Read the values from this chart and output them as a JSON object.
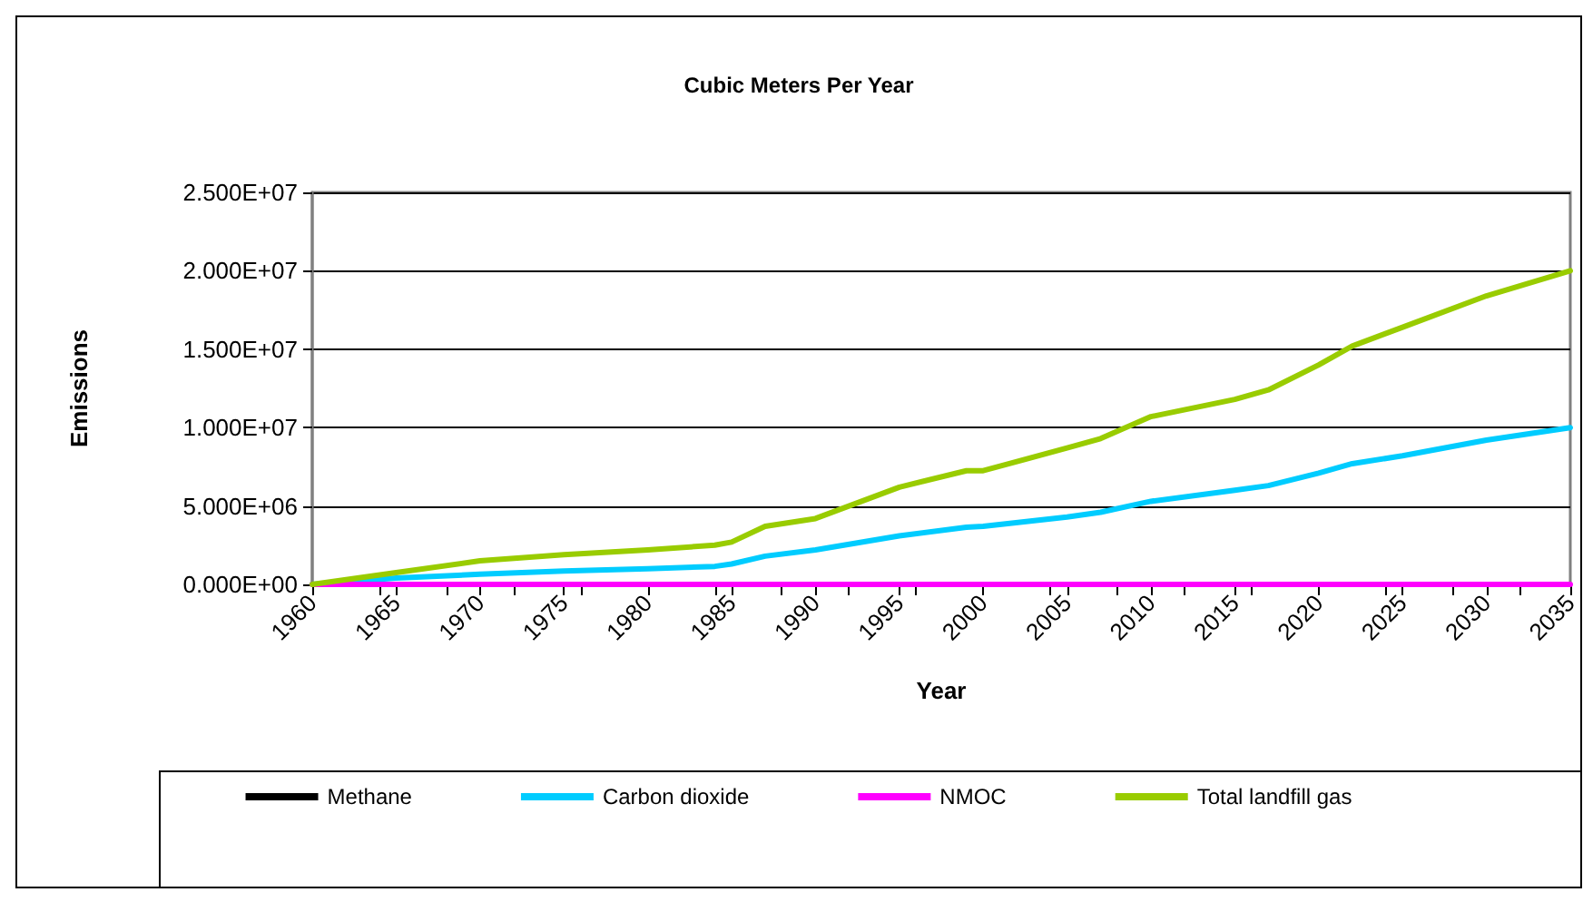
{
  "chart_data": {
    "type": "line",
    "title": "Cubic Meters Per Year",
    "xlabel": "Year",
    "ylabel": "Emissions",
    "x": [
      1960,
      1965,
      1970,
      1975,
      1980,
      1984,
      1985,
      1987,
      1990,
      1995,
      1999,
      2000,
      2005,
      2007,
      2010,
      2015,
      2017,
      2020,
      2022,
      2025,
      2030,
      2035
    ],
    "series": [
      {
        "name": "Methane",
        "color": "#000000",
        "values": [
          null,
          null,
          null,
          null,
          null,
          null,
          null,
          null,
          null,
          null,
          null,
          null,
          null,
          null,
          null,
          null,
          null,
          null,
          null,
          null,
          null,
          null
        ]
      },
      {
        "name": "Carbon dioxide",
        "color": "#00ccff",
        "values": [
          0,
          400000,
          650000,
          850000,
          1000000,
          1150000,
          1300000,
          1800000,
          2200000,
          3100000,
          3650000,
          3700000,
          4300000,
          4600000,
          5300000,
          6000000,
          6300000,
          7100000,
          7700000,
          8200000,
          9200000,
          10000000
        ]
      },
      {
        "name": "NMOC",
        "color": "#ff00ff",
        "values": [
          0,
          0,
          0,
          0,
          0,
          0,
          0,
          0,
          0,
          0,
          0,
          0,
          0,
          0,
          0,
          0,
          0,
          0,
          0,
          0,
          0,
          0
        ]
      },
      {
        "name": "Total landfill gas",
        "color": "#99cc00",
        "values": [
          0,
          750000,
          1500000,
          1900000,
          2200000,
          2500000,
          2700000,
          3700000,
          4200000,
          6200000,
          7250000,
          7250000,
          8700000,
          9300000,
          10700000,
          11800000,
          12400000,
          14000000,
          15200000,
          16400000,
          18400000,
          20000000
        ]
      }
    ],
    "xlim": [
      1960,
      2035
    ],
    "xticks": [
      1960,
      1965,
      1970,
      1975,
      1980,
      1985,
      1990,
      1995,
      2000,
      2005,
      2010,
      2015,
      2020,
      2025,
      2030,
      2035
    ],
    "ylim": [
      0,
      25000000
    ],
    "yticks": [
      {
        "value": 0,
        "label": "0.000E+00"
      },
      {
        "value": 5000000,
        "label": "5.000E+06"
      },
      {
        "value": 10000000,
        "label": "1.000E+07"
      },
      {
        "value": 15000000,
        "label": "1.500E+07"
      },
      {
        "value": 20000000,
        "label": "2.000E+07"
      },
      {
        "value": 25000000,
        "label": "2.500E+07"
      }
    ],
    "grid": "y",
    "legend": "bottom",
    "marker": "none",
    "line_style": "solid"
  }
}
